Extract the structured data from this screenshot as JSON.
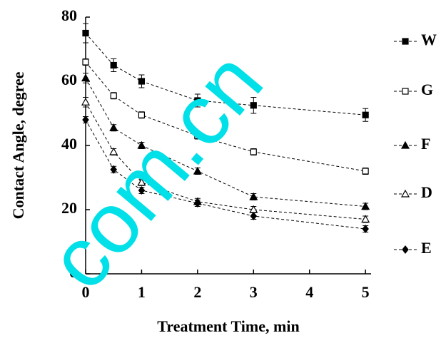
{
  "chart_data": {
    "type": "scatter",
    "x_label": "Treatment Time, min",
    "y_label": "Contact Angle, degree",
    "watermark": "com.cn",
    "x": [
      0,
      0.5,
      1,
      2,
      3,
      5
    ],
    "xlim": [
      0,
      5.1
    ],
    "xticks": [
      0,
      1,
      2,
      3,
      4,
      5
    ],
    "ylim": [
      0,
      80
    ],
    "yticks": [
      0,
      20,
      40,
      60,
      80
    ],
    "legend": "right",
    "line_style": "dashed",
    "series": [
      {
        "name": "W",
        "color": "#000000",
        "marker": "square",
        "filled": true,
        "values": [
          75,
          65,
          60,
          54,
          52.5,
          49.5
        ],
        "errors": [
          3,
          2,
          2,
          2,
          2.5,
          2
        ]
      },
      {
        "name": "G",
        "color": "#000000",
        "marker": "square",
        "filled": false,
        "values": [
          66,
          55.5,
          49.5,
          43,
          38,
          32
        ],
        "errors": [
          1,
          1,
          1,
          1,
          1,
          1
        ]
      },
      {
        "name": "F",
        "color": "#000000",
        "marker": "triangle",
        "filled": true,
        "values": [
          61,
          45.5,
          40,
          32,
          24,
          21
        ],
        "errors": [
          1.5,
          1,
          1,
          1,
          1,
          1
        ]
      },
      {
        "name": "D",
        "color": "#000000",
        "marker": "triangle",
        "filled": false,
        "values": [
          53.5,
          38,
          28.5,
          22.5,
          20,
          17
        ],
        "errors": [
          1.5,
          1,
          1,
          1,
          1,
          1
        ]
      },
      {
        "name": "E",
        "color": "#000000",
        "marker": "diamond",
        "filled": true,
        "values": [
          48,
          32.5,
          26,
          22,
          18,
          14
        ],
        "errors": [
          1,
          1,
          1,
          1,
          1,
          1
        ]
      }
    ]
  }
}
